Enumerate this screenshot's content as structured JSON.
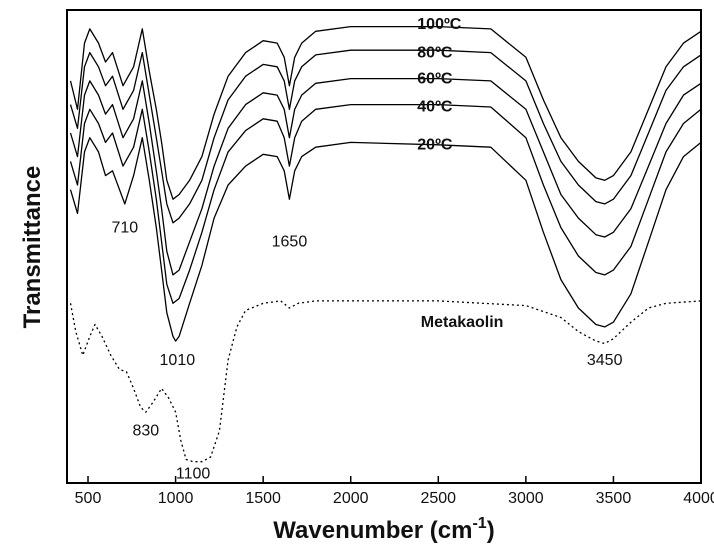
{
  "chart_data": {
    "type": "line",
    "xlabel": "Wavenumber (cm",
    "xlabel_sup": "-1",
    "xlabel_close": ")",
    "ylabel": "Transmittance",
    "xlim": [
      380,
      4000
    ],
    "y_axis_ticks": false,
    "grid": false,
    "legend": "none",
    "xticks": [
      500,
      1000,
      1500,
      2000,
      2500,
      3000,
      3500,
      4000
    ],
    "series": [
      {
        "name": "100ºC",
        "style": "solid",
        "color": "#000000",
        "points": [
          [
            400,
            0.85
          ],
          [
            440,
            0.79
          ],
          [
            480,
            0.93
          ],
          [
            510,
            0.96
          ],
          [
            560,
            0.93
          ],
          [
            600,
            0.89
          ],
          [
            640,
            0.91
          ],
          [
            700,
            0.84
          ],
          [
            760,
            0.88
          ],
          [
            810,
            0.96
          ],
          [
            850,
            0.87
          ],
          [
            890,
            0.79
          ],
          [
            920,
            0.72
          ],
          [
            950,
            0.64
          ],
          [
            985,
            0.6
          ],
          [
            1020,
            0.61
          ],
          [
            1080,
            0.64
          ],
          [
            1150,
            0.69
          ],
          [
            1220,
            0.78
          ],
          [
            1300,
            0.86
          ],
          [
            1400,
            0.91
          ],
          [
            1500,
            0.935
          ],
          [
            1580,
            0.93
          ],
          [
            1620,
            0.9
          ],
          [
            1650,
            0.84
          ],
          [
            1680,
            0.9
          ],
          [
            1720,
            0.93
          ],
          [
            1800,
            0.955
          ],
          [
            2000,
            0.965
          ],
          [
            2500,
            0.965
          ],
          [
            2800,
            0.96
          ],
          [
            3000,
            0.9
          ],
          [
            3100,
            0.81
          ],
          [
            3200,
            0.73
          ],
          [
            3300,
            0.68
          ],
          [
            3400,
            0.645
          ],
          [
            3450,
            0.64
          ],
          [
            3500,
            0.65
          ],
          [
            3600,
            0.7
          ],
          [
            3700,
            0.79
          ],
          [
            3800,
            0.88
          ],
          [
            3900,
            0.93
          ],
          [
            4000,
            0.955
          ]
        ]
      },
      {
        "name": "80ºC",
        "style": "solid",
        "color": "#000000",
        "points": [
          [
            400,
            0.8
          ],
          [
            440,
            0.75
          ],
          [
            480,
            0.88
          ],
          [
            510,
            0.91
          ],
          [
            560,
            0.88
          ],
          [
            600,
            0.84
          ],
          [
            640,
            0.86
          ],
          [
            700,
            0.79
          ],
          [
            760,
            0.83
          ],
          [
            810,
            0.91
          ],
          [
            850,
            0.82
          ],
          [
            890,
            0.73
          ],
          [
            920,
            0.66
          ],
          [
            950,
            0.59
          ],
          [
            985,
            0.55
          ],
          [
            1020,
            0.56
          ],
          [
            1080,
            0.59
          ],
          [
            1150,
            0.64
          ],
          [
            1220,
            0.73
          ],
          [
            1300,
            0.81
          ],
          [
            1400,
            0.86
          ],
          [
            1500,
            0.885
          ],
          [
            1580,
            0.88
          ],
          [
            1620,
            0.85
          ],
          [
            1650,
            0.79
          ],
          [
            1680,
            0.85
          ],
          [
            1720,
            0.88
          ],
          [
            1800,
            0.905
          ],
          [
            2000,
            0.915
          ],
          [
            2500,
            0.915
          ],
          [
            2800,
            0.91
          ],
          [
            3000,
            0.85
          ],
          [
            3100,
            0.76
          ],
          [
            3200,
            0.68
          ],
          [
            3300,
            0.63
          ],
          [
            3400,
            0.595
          ],
          [
            3450,
            0.59
          ],
          [
            3500,
            0.6
          ],
          [
            3600,
            0.65
          ],
          [
            3700,
            0.74
          ],
          [
            3800,
            0.83
          ],
          [
            3900,
            0.88
          ],
          [
            4000,
            0.905
          ]
        ]
      },
      {
        "name": "60ºC",
        "style": "solid",
        "color": "#000000",
        "points": [
          [
            400,
            0.74
          ],
          [
            440,
            0.69
          ],
          [
            480,
            0.82
          ],
          [
            510,
            0.85
          ],
          [
            560,
            0.82
          ],
          [
            600,
            0.78
          ],
          [
            640,
            0.8
          ],
          [
            700,
            0.73
          ],
          [
            760,
            0.77
          ],
          [
            810,
            0.85
          ],
          [
            850,
            0.76
          ],
          [
            890,
            0.66
          ],
          [
            920,
            0.58
          ],
          [
            950,
            0.49
          ],
          [
            985,
            0.44
          ],
          [
            1020,
            0.45
          ],
          [
            1080,
            0.51
          ],
          [
            1150,
            0.58
          ],
          [
            1220,
            0.67
          ],
          [
            1300,
            0.75
          ],
          [
            1400,
            0.8
          ],
          [
            1500,
            0.825
          ],
          [
            1580,
            0.82
          ],
          [
            1620,
            0.79
          ],
          [
            1650,
            0.73
          ],
          [
            1680,
            0.79
          ],
          [
            1720,
            0.82
          ],
          [
            1800,
            0.845
          ],
          [
            2000,
            0.855
          ],
          [
            2500,
            0.855
          ],
          [
            2800,
            0.85
          ],
          [
            3000,
            0.79
          ],
          [
            3100,
            0.7
          ],
          [
            3200,
            0.61
          ],
          [
            3300,
            0.56
          ],
          [
            3400,
            0.525
          ],
          [
            3450,
            0.52
          ],
          [
            3500,
            0.53
          ],
          [
            3600,
            0.58
          ],
          [
            3700,
            0.67
          ],
          [
            3800,
            0.76
          ],
          [
            3900,
            0.82
          ],
          [
            4000,
            0.845
          ]
        ]
      },
      {
        "name": "40ºC",
        "style": "solid",
        "color": "#000000",
        "points": [
          [
            400,
            0.68
          ],
          [
            440,
            0.63
          ],
          [
            480,
            0.76
          ],
          [
            510,
            0.79
          ],
          [
            560,
            0.76
          ],
          [
            600,
            0.72
          ],
          [
            640,
            0.74
          ],
          [
            700,
            0.67
          ],
          [
            760,
            0.71
          ],
          [
            810,
            0.79
          ],
          [
            850,
            0.7
          ],
          [
            890,
            0.6
          ],
          [
            920,
            0.51
          ],
          [
            950,
            0.42
          ],
          [
            985,
            0.38
          ],
          [
            1020,
            0.39
          ],
          [
            1080,
            0.45
          ],
          [
            1150,
            0.53
          ],
          [
            1220,
            0.62
          ],
          [
            1300,
            0.7
          ],
          [
            1400,
            0.745
          ],
          [
            1500,
            0.77
          ],
          [
            1580,
            0.765
          ],
          [
            1620,
            0.73
          ],
          [
            1650,
            0.67
          ],
          [
            1680,
            0.73
          ],
          [
            1720,
            0.765
          ],
          [
            1800,
            0.79
          ],
          [
            2000,
            0.8
          ],
          [
            2500,
            0.8
          ],
          [
            2800,
            0.795
          ],
          [
            3000,
            0.73
          ],
          [
            3100,
            0.63
          ],
          [
            3200,
            0.54
          ],
          [
            3300,
            0.48
          ],
          [
            3400,
            0.445
          ],
          [
            3450,
            0.44
          ],
          [
            3500,
            0.45
          ],
          [
            3600,
            0.5
          ],
          [
            3700,
            0.6
          ],
          [
            3800,
            0.7
          ],
          [
            3900,
            0.76
          ],
          [
            4000,
            0.79
          ]
        ]
      },
      {
        "name": "20ºC",
        "style": "solid",
        "color": "#000000",
        "points": [
          [
            400,
            0.62
          ],
          [
            440,
            0.57
          ],
          [
            480,
            0.7
          ],
          [
            510,
            0.73
          ],
          [
            560,
            0.7
          ],
          [
            600,
            0.65
          ],
          [
            640,
            0.66
          ],
          [
            710,
            0.59
          ],
          [
            760,
            0.65
          ],
          [
            810,
            0.73
          ],
          [
            850,
            0.64
          ],
          [
            890,
            0.54
          ],
          [
            920,
            0.45
          ],
          [
            950,
            0.36
          ],
          [
            985,
            0.31
          ],
          [
            1000,
            0.3
          ],
          [
            1020,
            0.31
          ],
          [
            1080,
            0.38
          ],
          [
            1150,
            0.46
          ],
          [
            1220,
            0.56
          ],
          [
            1300,
            0.63
          ],
          [
            1400,
            0.67
          ],
          [
            1500,
            0.695
          ],
          [
            1580,
            0.69
          ],
          [
            1620,
            0.66
          ],
          [
            1650,
            0.6
          ],
          [
            1680,
            0.66
          ],
          [
            1720,
            0.69
          ],
          [
            1800,
            0.71
          ],
          [
            2000,
            0.72
          ],
          [
            2500,
            0.715
          ],
          [
            2800,
            0.71
          ],
          [
            3000,
            0.64
          ],
          [
            3100,
            0.53
          ],
          [
            3200,
            0.43
          ],
          [
            3300,
            0.37
          ],
          [
            3400,
            0.335
          ],
          [
            3450,
            0.33
          ],
          [
            3500,
            0.34
          ],
          [
            3600,
            0.4
          ],
          [
            3700,
            0.51
          ],
          [
            3800,
            0.62
          ],
          [
            3900,
            0.69
          ],
          [
            4000,
            0.72
          ]
        ]
      },
      {
        "name": "Metakaolin",
        "style": "dotted",
        "color": "#000000",
        "points": [
          [
            400,
            0.38
          ],
          [
            430,
            0.32
          ],
          [
            470,
            0.27
          ],
          [
            510,
            0.31
          ],
          [
            540,
            0.335
          ],
          [
            580,
            0.31
          ],
          [
            630,
            0.27
          ],
          [
            680,
            0.24
          ],
          [
            720,
            0.235
          ],
          [
            760,
            0.2
          ],
          [
            800,
            0.16
          ],
          [
            830,
            0.15
          ],
          [
            870,
            0.17
          ],
          [
            920,
            0.2
          ],
          [
            960,
            0.18
          ],
          [
            1000,
            0.15
          ],
          [
            1030,
            0.09
          ],
          [
            1060,
            0.05
          ],
          [
            1100,
            0.045
          ],
          [
            1150,
            0.045
          ],
          [
            1200,
            0.055
          ],
          [
            1250,
            0.11
          ],
          [
            1300,
            0.26
          ],
          [
            1350,
            0.33
          ],
          [
            1400,
            0.365
          ],
          [
            1500,
            0.38
          ],
          [
            1600,
            0.385
          ],
          [
            1650,
            0.37
          ],
          [
            1700,
            0.38
          ],
          [
            1800,
            0.385
          ],
          [
            2500,
            0.385
          ],
          [
            3000,
            0.375
          ],
          [
            3200,
            0.35
          ],
          [
            3300,
            0.32
          ],
          [
            3400,
            0.3
          ],
          [
            3450,
            0.295
          ],
          [
            3500,
            0.305
          ],
          [
            3600,
            0.34
          ],
          [
            3700,
            0.37
          ],
          [
            3800,
            0.38
          ],
          [
            4000,
            0.385
          ]
        ]
      }
    ],
    "annotations": [
      {
        "text": "710",
        "x": 710,
        "y": 0.53
      },
      {
        "text": "1650",
        "x": 1650,
        "y": 0.5
      },
      {
        "text": "1010",
        "x": 1010,
        "y": 0.25
      },
      {
        "text": "830",
        "x": 830,
        "y": 0.1
      },
      {
        "text": "1100",
        "x": 1100,
        "y": 0.01
      },
      {
        "text": "3450",
        "x": 3450,
        "y": 0.25
      }
    ],
    "series_labels": [
      {
        "text": "100ºC",
        "x": 2380,
        "y": 0.96
      },
      {
        "text": "80ºC",
        "x": 2380,
        "y": 0.9
      },
      {
        "text": "60ºC",
        "x": 2380,
        "y": 0.845
      },
      {
        "text": "40ºC",
        "x": 2380,
        "y": 0.785
      },
      {
        "text": "20ºC",
        "x": 2380,
        "y": 0.705
      },
      {
        "text": "Metakaolin",
        "x": 2400,
        "y": 0.33
      }
    ]
  }
}
